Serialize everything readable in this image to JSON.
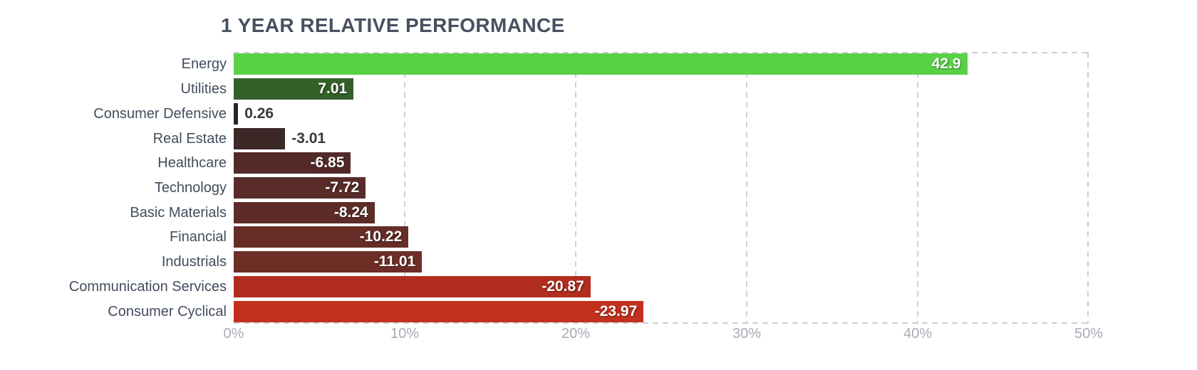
{
  "chart_data": {
    "type": "bar",
    "orientation": "horizontal",
    "title": "1 YEAR RELATIVE PERFORMANCE",
    "categories": [
      "Energy",
      "Utilities",
      "Consumer Defensive",
      "Real Estate",
      "Healthcare",
      "Technology",
      "Basic Materials",
      "Financial",
      "Industrials",
      "Communication Services",
      "Consumer Cyclical"
    ],
    "values": [
      42.9,
      7.01,
      0.26,
      -3.01,
      -6.85,
      -7.72,
      -8.24,
      -10.22,
      -11.01,
      -20.87,
      -23.97
    ],
    "value_labels": [
      "42.9",
      "7.01",
      "0.26",
      "-3.01",
      "-6.85",
      "-7.72",
      "-8.24",
      "-10.22",
      "-11.01",
      "-20.87",
      "-23.97"
    ],
    "bar_colors": [
      "#59d146",
      "#335f29",
      "#292322",
      "#3b2827",
      "#532a28",
      "#582b28",
      "#5d2c28",
      "#662d27",
      "#6d2e26",
      "#b12d1e",
      "#c2301e"
    ],
    "xlabel": "",
    "ylabel": "",
    "x_ticks": [
      "0%",
      "10%",
      "20%",
      "30%",
      "40%",
      "50%"
    ],
    "x_tick_values": [
      0,
      10,
      20,
      30,
      40,
      50
    ],
    "xlim": [
      0,
      50
    ],
    "bar_length_basis": "absolute-value",
    "grid": "dashed-vertical",
    "legend": "none",
    "style_colors": {
      "title_text": "#47505f",
      "category_text": "#424d5c",
      "tick_text": "#a6abb4",
      "value_text_inside": "#ffffff",
      "value_text_outside": "#3e3835",
      "grid_dash": "#cbced4",
      "background": "#ffffff"
    }
  }
}
